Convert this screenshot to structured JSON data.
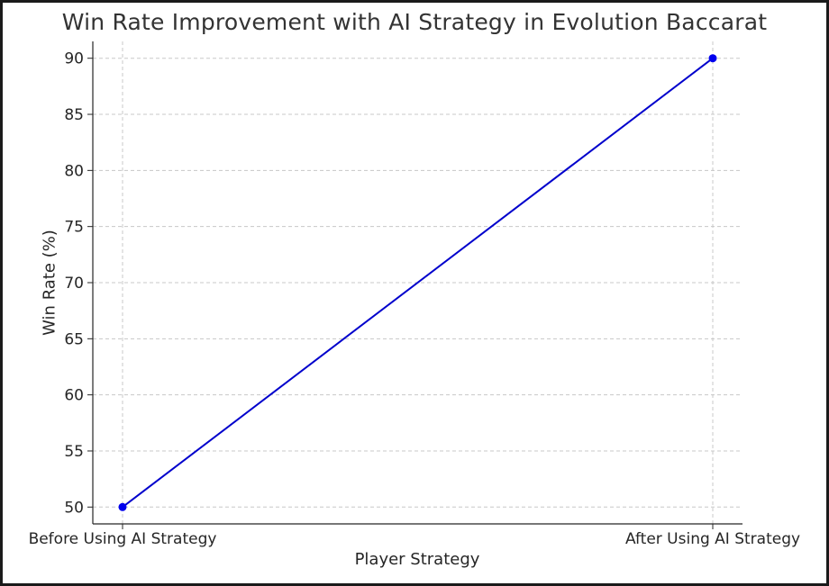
{
  "chart_data": {
    "type": "line",
    "title": "Win Rate Improvement with AI Strategy in Evolution Baccarat",
    "xlabel": "Player Strategy",
    "ylabel": "Win Rate (%)",
    "categories": [
      "Before Using AI Strategy",
      "After Using AI Strategy"
    ],
    "series": [
      {
        "values": [
          50,
          90
        ]
      }
    ],
    "ylim": [
      48.5,
      91.5
    ],
    "yticks": [
      50,
      55,
      60,
      65,
      70,
      75,
      80,
      85,
      90
    ],
    "grid": true,
    "grid_style": "dashed",
    "line_color": "#0000cc",
    "marker_color": "#0000ee"
  }
}
